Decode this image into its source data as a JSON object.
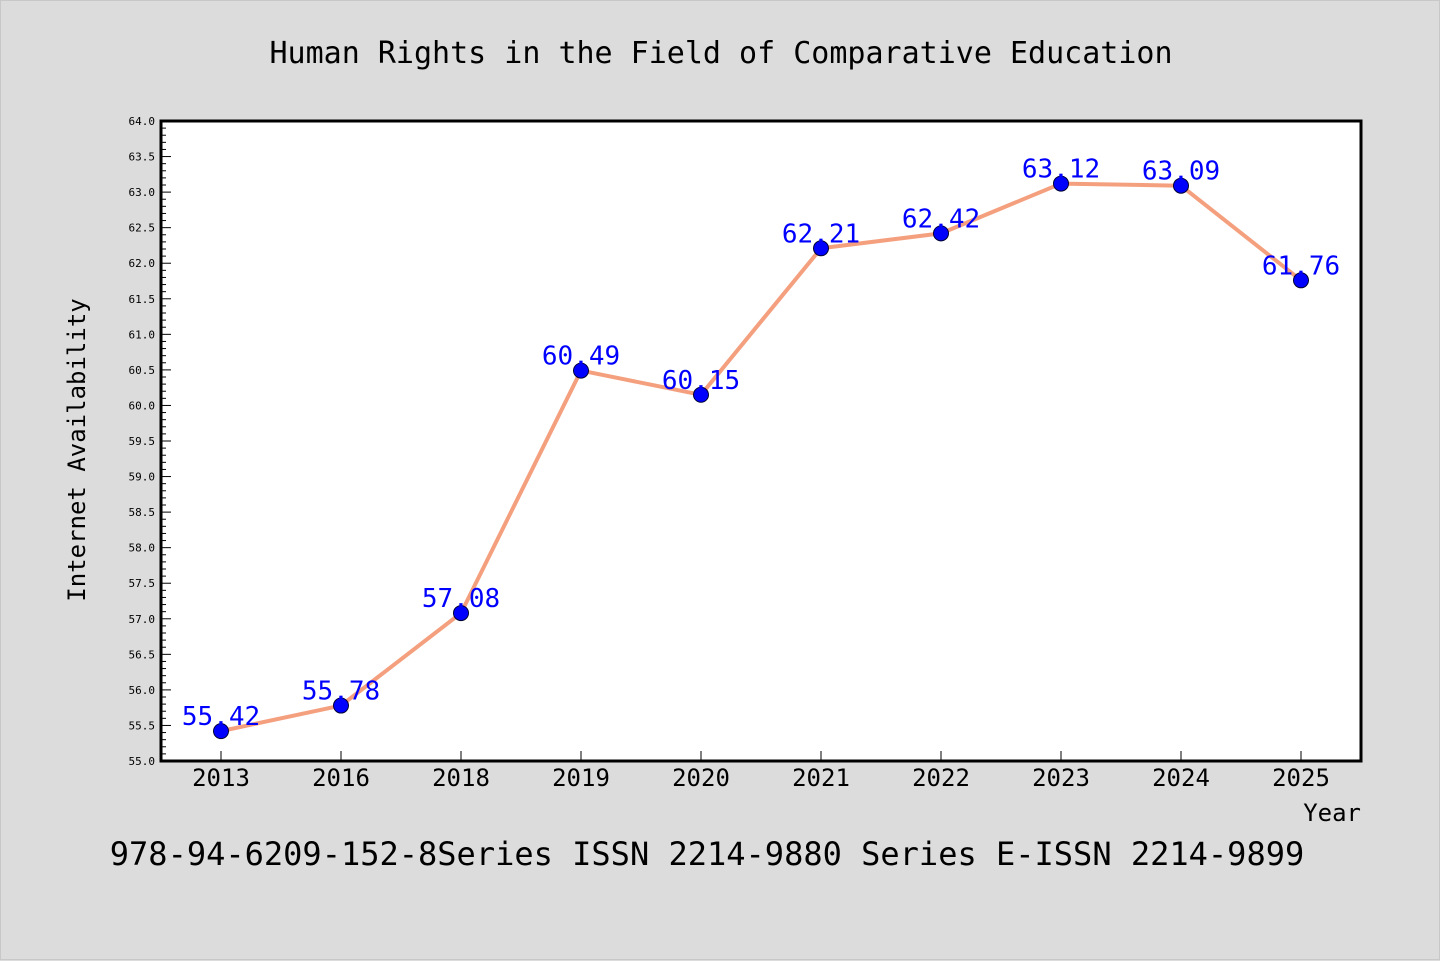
{
  "chart_data": {
    "type": "line",
    "title": "Human Rights in the Field of Comparative Education",
    "xlabel": "Year",
    "ylabel": "Internet Availability",
    "categories": [
      "2013",
      "2016",
      "2018",
      "2019",
      "2020",
      "2021",
      "2022",
      "2023",
      "2024",
      "2025"
    ],
    "series": [
      {
        "values": [
          55.42,
          55.78,
          57.08,
          60.49,
          60.15,
          62.21,
          62.42,
          63.12,
          63.09,
          61.76
        ],
        "data_labels": [
          "55.42",
          "55.78",
          "57.08",
          "60.49",
          "60.15",
          "62.21",
          "62.42",
          "63.12",
          "63.09",
          "61.76"
        ]
      }
    ],
    "ylim": [
      55.0,
      64.0
    ],
    "yticks": [
      "55.0",
      "55.5",
      "56.0",
      "56.5",
      "57.0",
      "57.5",
      "58.0",
      "58.5",
      "59.0",
      "59.5",
      "60.0",
      "60.5",
      "61.0",
      "61.5",
      "62.0",
      "62.5",
      "63.0",
      "63.5",
      "64.0"
    ],
    "grid": false,
    "legend": "none",
    "colors": {
      "line": "#f4a07e",
      "marker": "#0000ff",
      "label": "#0000ff",
      "background": "#dcdcdc",
      "plot_background": "#ffffff"
    }
  },
  "footer": {
    "text": "978-94-6209-152-8Series ISSN 2214-9880 Series E-ISSN 2214-9899"
  }
}
